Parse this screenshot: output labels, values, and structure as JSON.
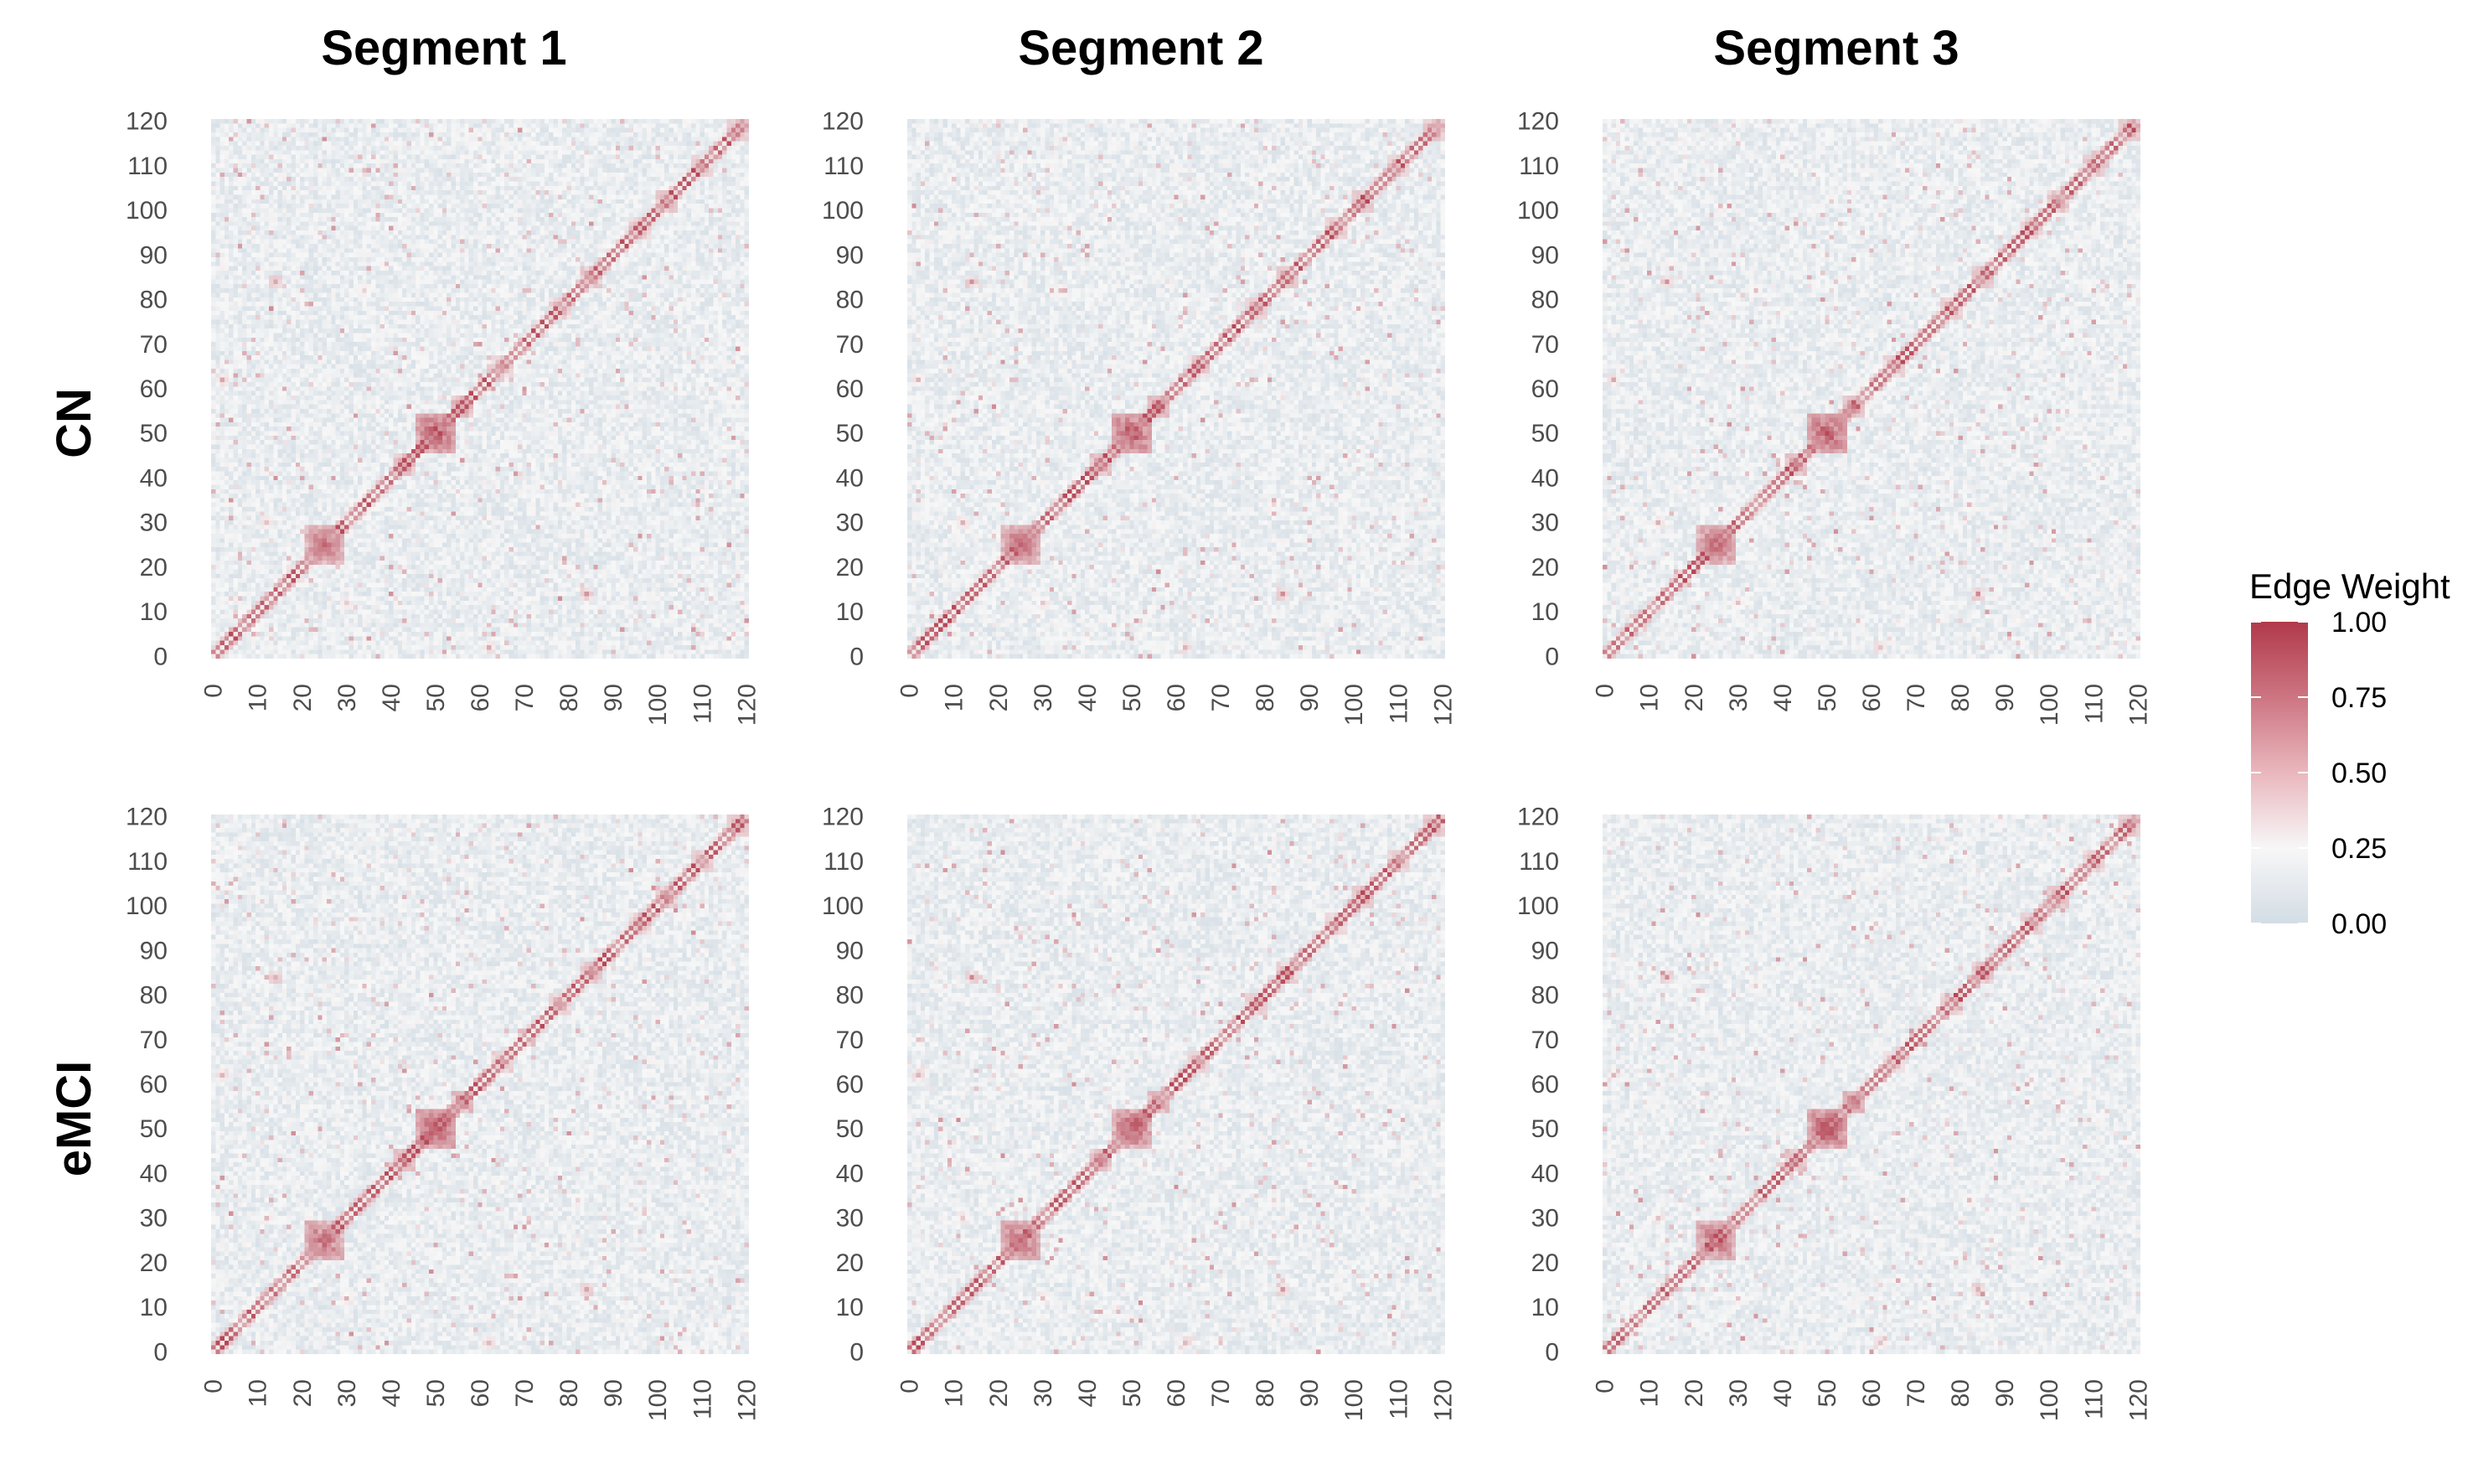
{
  "chart_data": {
    "type": "heatmap",
    "columns": [
      "Segment 1",
      "Segment 2",
      "Segment 3"
    ],
    "rows": [
      "CN",
      "eMCI"
    ],
    "matrix_size": 121,
    "x_ticks": [
      "0",
      "10",
      "20",
      "30",
      "40",
      "50",
      "60",
      "70",
      "80",
      "90",
      "100",
      "110",
      "120"
    ],
    "y_ticks": [
      "0",
      "10",
      "20",
      "30",
      "40",
      "50",
      "60",
      "70",
      "80",
      "90",
      "100",
      "110",
      "120"
    ],
    "xlim": [
      0,
      120
    ],
    "ylim": [
      0,
      120
    ],
    "legend": {
      "title": "Edge Weight",
      "ticks": [
        "1.00",
        "0.75",
        "0.50",
        "0.25",
        "0.00"
      ],
      "range": [
        0,
        1
      ],
      "placement": "right"
    },
    "color_scale": {
      "low": "#d3dde5",
      "mid": "#f7f7f7",
      "high": "#b1394a",
      "midpoint": 0.25
    },
    "diagonal_blocks": [
      {
        "center": 25,
        "radius": 4,
        "value": 0.82
      },
      {
        "center": 50,
        "radius": 4,
        "value": 0.9
      },
      {
        "center": 56,
        "radius": 2,
        "value": 0.7
      },
      {
        "center": 43,
        "radius": 2,
        "value": 0.65
      },
      {
        "center": 65,
        "radius": 2,
        "value": 0.55
      },
      {
        "center": 78,
        "radius": 2,
        "value": 0.55
      },
      {
        "center": 85,
        "radius": 2,
        "value": 0.6
      },
      {
        "center": 96,
        "radius": 2,
        "value": 0.55
      },
      {
        "center": 102,
        "radius": 2,
        "value": 0.6
      },
      {
        "center": 110,
        "radius": 2,
        "value": 0.55
      },
      {
        "center": 118,
        "radius": 2,
        "value": 0.6
      }
    ],
    "off_diagonal_hotspots": [
      {
        "x": 14,
        "y": 84,
        "value": 0.65
      },
      {
        "x": 84,
        "y": 14,
        "value": 0.65
      },
      {
        "x": 2,
        "y": 62,
        "value": 0.55
      },
      {
        "x": 62,
        "y": 2,
        "value": 0.55
      },
      {
        "x": 30,
        "y": 12,
        "value": 0.5
      },
      {
        "x": 12,
        "y": 30,
        "value": 0.5
      },
      {
        "x": 82,
        "y": 34,
        "value": 0.45
      },
      {
        "x": 34,
        "y": 82,
        "value": 0.45
      }
    ]
  }
}
